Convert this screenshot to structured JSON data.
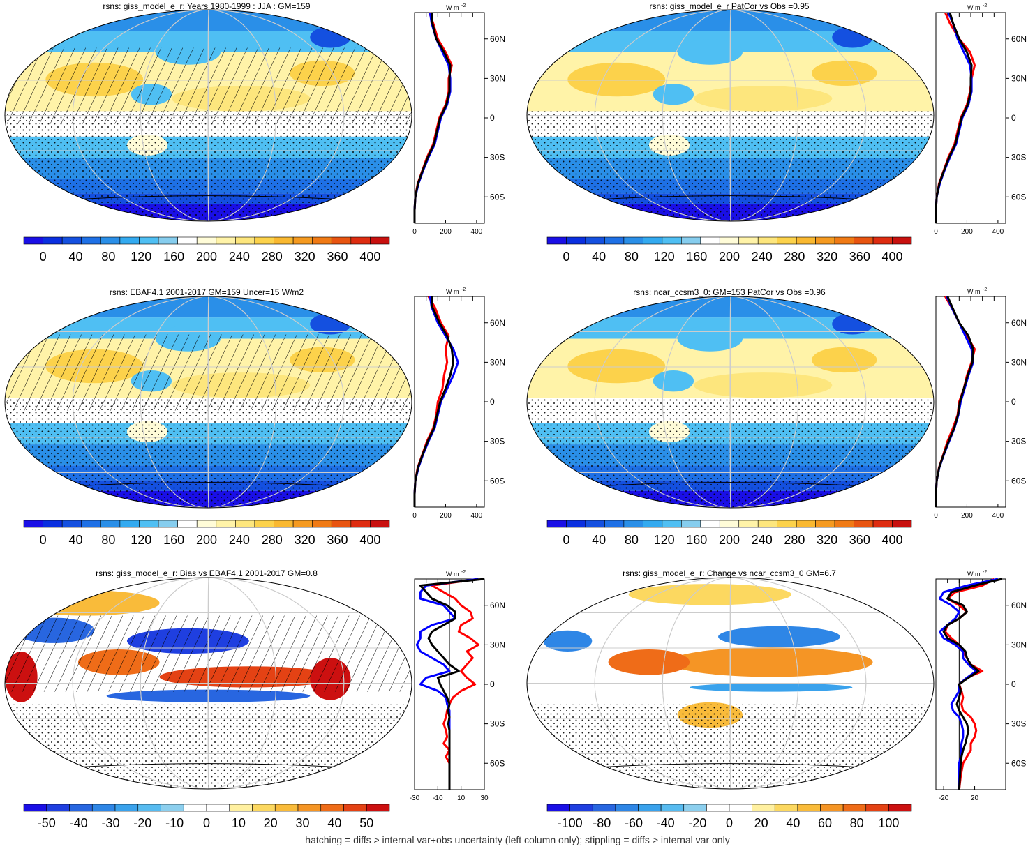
{
  "footer": "hatching = diffs > internal var+obs uncertainty (left column only); stippling = diffs > internal var only",
  "colors": {
    "line_red": "#ff0000",
    "line_blue": "#0000ff",
    "line_black": "#000000",
    "grid": "#cccccc",
    "abs_ramp": [
      "#1a0fe6",
      "#0a2fe0",
      "#1450e0",
      "#1e70e6",
      "#2a8fe8",
      "#33aaf0",
      "#4fbff3",
      "#86cdee",
      "#ffffff",
      "#fffcd8",
      "#fff3a8",
      "#fde67d",
      "#fcd24b",
      "#f9b830",
      "#f59a20",
      "#f07a14",
      "#e85410",
      "#de2c10",
      "#c8100e"
    ],
    "diff_ramp": [
      "#1a0fe6",
      "#1f3fe0",
      "#2866e0",
      "#2e86e6",
      "#3aa2ec",
      "#57bbf0",
      "#8ccfee",
      "#ffffff",
      "#ffffff",
      "#fff0a0",
      "#fcd860",
      "#f9bb3a",
      "#f59525",
      "#ef6c18",
      "#e44214",
      "#cc1010"
    ]
  },
  "chart_data": [
    {
      "type": "heatmap",
      "title": "rsns: giss_model_e_r: Years 1980-1999 : JJA : GM=159",
      "colorbar_ticks": [
        "0",
        "40",
        "80",
        "120",
        "160",
        "200",
        "240",
        "280",
        "320",
        "360",
        "400"
      ],
      "profile": {
        "unit": "W m",
        "unit_sup": "-2",
        "y_ticks": [
          "60N",
          "30N",
          "0",
          "30S",
          "60S"
        ],
        "x_ticks": [
          "0",
          "200",
          "400"
        ],
        "xlim": [
          0,
          450
        ],
        "lat": [
          80,
          72,
          60,
          50,
          40,
          30,
          20,
          10,
          0,
          -10,
          -20,
          -30,
          -40,
          -50,
          -60,
          -70,
          -80
        ],
        "series": [
          {
            "color": "red",
            "values": [
              95,
              120,
              150,
              200,
              240,
              220,
              220,
              200,
              160,
              140,
              120,
              80,
              50,
              20,
              5,
              0,
              0
            ]
          },
          {
            "color": "blue",
            "values": [
              100,
              110,
              140,
              180,
              220,
              230,
              230,
              210,
              170,
              150,
              130,
              90,
              55,
              25,
              5,
              0,
              0
            ]
          },
          {
            "color": "black",
            "values": [
              110,
              115,
              140,
              190,
              230,
              225,
              225,
              205,
              165,
              145,
              125,
              85,
              52,
              22,
              5,
              0,
              0
            ]
          }
        ]
      }
    },
    {
      "type": "heatmap",
      "title": "rsns: giss_model_e_r PatCor vs Obs =0.95",
      "colorbar_ticks": [
        "0",
        "40",
        "80",
        "120",
        "160",
        "200",
        "240",
        "280",
        "320",
        "360",
        "400"
      ],
      "profile": {
        "unit": "W m",
        "unit_sup": "-2",
        "y_ticks": [
          "60N",
          "30N",
          "0",
          "30S",
          "60S"
        ],
        "x_ticks": [
          "0",
          "200",
          "400"
        ],
        "xlim": [
          0,
          450
        ],
        "lat": [
          80,
          72,
          60,
          50,
          40,
          30,
          20,
          10,
          0,
          -10,
          -20,
          -30,
          -40,
          -50,
          -60,
          -70,
          -80
        ],
        "series": [
          {
            "color": "red",
            "values": [
              60,
              90,
              150,
              220,
              250,
              230,
              220,
              200,
              160,
              140,
              120,
              80,
              50,
              20,
              5,
              0,
              0
            ]
          },
          {
            "color": "blue",
            "values": [
              80,
              110,
              140,
              180,
              220,
              230,
              230,
              210,
              170,
              150,
              130,
              90,
              55,
              25,
              5,
              0,
              0
            ]
          },
          {
            "color": "black",
            "values": [
              90,
              110,
              150,
              200,
              230,
              225,
              225,
              205,
              165,
              145,
              125,
              85,
              52,
              22,
              5,
              0,
              0
            ]
          }
        ]
      }
    },
    {
      "type": "heatmap",
      "title": "rsns: EBAF4.1 2001-2017 GM=159 Uncer=15 W/m2",
      "colorbar_ticks": [
        "0",
        "40",
        "80",
        "120",
        "160",
        "200",
        "240",
        "280",
        "320",
        "360",
        "400"
      ],
      "profile": {
        "unit": "W m",
        "unit_sup": "-2",
        "y_ticks": [
          "60N",
          "30N",
          "0",
          "30S",
          "60S"
        ],
        "x_ticks": [
          "0",
          "200",
          "400"
        ],
        "xlim": [
          0,
          450
        ],
        "lat": [
          80,
          72,
          60,
          50,
          40,
          30,
          20,
          10,
          0,
          -10,
          -20,
          -30,
          -40,
          -50,
          -60,
          -70,
          -80
        ],
        "series": [
          {
            "color": "red",
            "values": [
              90,
              130,
              170,
              220,
              200,
              210,
              190,
              180,
              150,
              140,
              120,
              80,
              50,
              20,
              5,
              0,
              0
            ]
          },
          {
            "color": "blue",
            "values": [
              100,
              110,
              150,
              200,
              250,
              280,
              250,
              210,
              170,
              150,
              130,
              90,
              55,
              25,
              5,
              0,
              0
            ]
          },
          {
            "color": "black",
            "values": [
              110,
              115,
              160,
              210,
              240,
              250,
              230,
              200,
              165,
              145,
              125,
              85,
              52,
              22,
              5,
              0,
              0
            ]
          }
        ]
      }
    },
    {
      "type": "heatmap",
      "title": "rsns: ncar_ccsm3_0: GM=153 PatCor vs Obs =0.96",
      "colorbar_ticks": [
        "0",
        "40",
        "80",
        "120",
        "160",
        "200",
        "240",
        "280",
        "320",
        "360",
        "400"
      ],
      "profile": {
        "unit": "W m",
        "unit_sup": "-2",
        "y_ticks": [
          "60N",
          "30N",
          "0",
          "30S",
          "60S"
        ],
        "x_ticks": [
          "0",
          "200",
          "400"
        ],
        "xlim": [
          0,
          450
        ],
        "lat": [
          80,
          72,
          60,
          50,
          40,
          30,
          20,
          10,
          0,
          -10,
          -20,
          -30,
          -40,
          -50,
          -60,
          -70,
          -80
        ],
        "series": [
          {
            "color": "red",
            "values": [
              60,
              100,
              150,
              200,
              250,
              230,
              200,
              180,
              150,
              140,
              110,
              75,
              48,
              20,
              5,
              0,
              0
            ]
          },
          {
            "color": "blue",
            "values": [
              70,
              100,
              150,
              190,
              230,
              240,
              210,
              185,
              160,
              145,
              120,
              85,
              52,
              22,
              5,
              0,
              0
            ]
          },
          {
            "color": "black",
            "values": [
              75,
              105,
              150,
              210,
              240,
              235,
              205,
              180,
              155,
              142,
              118,
              82,
              50,
              21,
              5,
              0,
              0
            ]
          }
        ]
      }
    },
    {
      "type": "heatmap",
      "title": "rsns: giss_model_e_r: Bias vs EBAF4.1 2001-2017 GM=0.8",
      "colorbar_ticks": [
        "-50",
        "-40",
        "-30",
        "-20",
        "-10",
        "0",
        "10",
        "20",
        "30",
        "40",
        "50"
      ],
      "profile": {
        "unit": "W m",
        "unit_sup": "-2",
        "y_ticks": [
          "60N",
          "30N",
          "0",
          "30S",
          "60S"
        ],
        "x_ticks": [
          "-30",
          "-10",
          "10",
          "30"
        ],
        "xlim": [
          -30,
          30
        ],
        "lat": [
          80,
          75,
          70,
          65,
          60,
          55,
          50,
          45,
          40,
          35,
          30,
          25,
          20,
          15,
          10,
          5,
          0,
          -5,
          -10,
          -15,
          -20,
          -25,
          -30,
          -35,
          -40,
          -45,
          -50,
          -55,
          -60,
          -70,
          -80
        ],
        "series": [
          {
            "color": "red",
            "values": [
              25,
              -15,
              -5,
              5,
              10,
              18,
              20,
              10,
              8,
              18,
              25,
              15,
              20,
              15,
              10,
              15,
              22,
              10,
              3,
              0,
              -2,
              -3,
              -5,
              -3,
              -2,
              -5,
              0,
              -3,
              0,
              0,
              0
            ]
          },
          {
            "color": "blue",
            "values": [
              25,
              -20,
              -25,
              -25,
              -5,
              0,
              5,
              -15,
              -25,
              -25,
              -28,
              -25,
              -15,
              -5,
              0,
              -20,
              -25,
              -10,
              -3,
              -2,
              0,
              0,
              0,
              0,
              0,
              0,
              0,
              0,
              0,
              0,
              0
            ]
          },
          {
            "color": "black",
            "values": [
              30,
              -25,
              -20,
              -15,
              -2,
              5,
              5,
              -5,
              -15,
              -18,
              -15,
              -10,
              -5,
              0,
              8,
              -10,
              -8,
              -5,
              -2,
              0,
              -1,
              0,
              -1,
              0,
              0,
              0,
              0,
              0,
              0,
              0,
              0
            ]
          }
        ]
      }
    },
    {
      "type": "heatmap",
      "title": "rsns: giss_model_e_r: Change vs ncar_ccsm3_0 GM=6.7",
      "colorbar_ticks": [
        "-100",
        "-80",
        "-60",
        "-40",
        "-20",
        "0",
        "20",
        "40",
        "60",
        "80",
        "100"
      ],
      "profile": {
        "unit": "W m",
        "unit_sup": "-2",
        "y_ticks": [
          "60N",
          "30N",
          "0",
          "30S",
          "60S"
        ],
        "x_ticks": [
          "-20",
          "20"
        ],
        "xlim": [
          -30,
          60
        ],
        "lat": [
          80,
          75,
          70,
          65,
          60,
          55,
          50,
          45,
          40,
          35,
          30,
          25,
          20,
          15,
          10,
          5,
          0,
          -5,
          -10,
          -15,
          -20,
          -25,
          -30,
          -35,
          -40,
          -45,
          -50,
          -55,
          -60,
          -70,
          -80
        ],
        "series": [
          {
            "color": "red",
            "values": [
              45,
              30,
              -5,
              -15,
              0,
              10,
              0,
              -15,
              -18,
              -10,
              0,
              5,
              10,
              15,
              30,
              10,
              0,
              3,
              5,
              3,
              5,
              15,
              20,
              22,
              20,
              15,
              15,
              10,
              5,
              2,
              0
            ]
          },
          {
            "color": "blue",
            "values": [
              50,
              10,
              -20,
              -25,
              -10,
              0,
              -5,
              -15,
              -25,
              -20,
              -5,
              5,
              5,
              12,
              22,
              10,
              0,
              0,
              -5,
              -10,
              -8,
              0,
              3,
              5,
              5,
              3,
              2,
              2,
              0,
              0,
              0
            ]
          },
          {
            "color": "black",
            "values": [
              55,
              20,
              -10,
              -15,
              5,
              10,
              0,
              -15,
              -20,
              -15,
              0,
              8,
              10,
              15,
              25,
              12,
              0,
              2,
              0,
              -3,
              0,
              5,
              10,
              12,
              10,
              8,
              5,
              3,
              2,
              1,
              0
            ]
          }
        ]
      }
    }
  ]
}
